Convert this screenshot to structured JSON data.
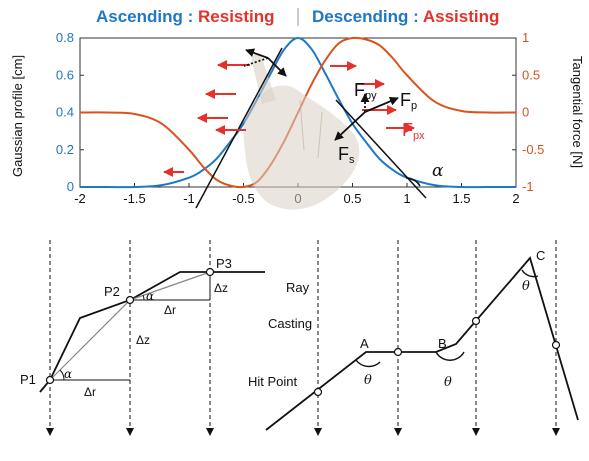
{
  "header": {
    "left_a": "Ascending",
    "left_sep": " : ",
    "left_b": "Resisting",
    "right_a": "Descending",
    "right_sep": " : ",
    "right_b": "Assisting"
  },
  "colors": {
    "gaussian": "#1f77c8",
    "tangential": "#d9531e",
    "force": "#e8302a",
    "text": "#111111"
  },
  "chart_data": {
    "type": "line",
    "xlabel": "",
    "xlim": [
      -2,
      2
    ],
    "ylim": [
      0,
      0.8
    ],
    "y2lim": [
      -1,
      1
    ],
    "xticks": [
      "-2",
      "-1.5",
      "-1",
      "-0.5",
      "0",
      "0.5",
      "1",
      "1.5",
      "2"
    ],
    "yticks": [
      "0",
      "0.2",
      "0.4",
      "0.6",
      "0.8"
    ],
    "y2ticks": [
      "-1",
      "-0.5",
      "0",
      "0.5",
      "1"
    ],
    "ylabel": "Gaussian profile [cm]",
    "y2label": "Tangential force [N]",
    "series": [
      {
        "axis": "left",
        "color": "#1f77c8",
        "x": [
          -2,
          -1.75,
          -1.5,
          -1.25,
          -1,
          -0.875,
          -0.75,
          -0.625,
          -0.5,
          -0.375,
          -0.25,
          -0.125,
          0,
          0.125,
          0.25,
          0.375,
          0.5,
          0.625,
          0.75,
          0.875,
          1,
          1.25,
          1.5,
          1.75,
          2
        ],
        "y": [
          0,
          0,
          0,
          0.01,
          0.05,
          0.09,
          0.15,
          0.24,
          0.34,
          0.47,
          0.61,
          0.74,
          0.8,
          0.74,
          0.61,
          0.47,
          0.34,
          0.24,
          0.15,
          0.09,
          0.05,
          0.01,
          0,
          0,
          0
        ]
      },
      {
        "axis": "right",
        "color": "#d9531e",
        "x": [
          -2,
          -1.75,
          -1.5,
          -1.25,
          -1,
          -0.875,
          -0.75,
          -0.625,
          -0.5,
          -0.375,
          -0.25,
          -0.125,
          0,
          0.125,
          0.25,
          0.375,
          0.5,
          0.625,
          0.75,
          0.875,
          1,
          1.25,
          1.5,
          1.75,
          2
        ],
        "y": [
          0,
          0,
          -0.02,
          -0.15,
          -0.5,
          -0.72,
          -0.9,
          -0.98,
          -1,
          -0.93,
          -0.7,
          -0.38,
          0,
          0.38,
          0.7,
          0.93,
          1,
          0.98,
          0.9,
          0.72,
          0.5,
          0.15,
          0.02,
          0,
          0
        ]
      }
    ]
  },
  "forces": {
    "fpy": "F",
    "fpy_sub": "py",
    "fp": "F",
    "fp_sub": "p",
    "fpx": "F",
    "fpx_sub": "px",
    "fs": "F",
    "fs_sub": "s",
    "alpha": "α"
  },
  "left_diagram": {
    "p1": "P1",
    "p2": "P2",
    "p3": "P3",
    "alpha": "α",
    "dr": "Δr",
    "dz": "Δz"
  },
  "right_diagram": {
    "ray": "Ray",
    "casting": "Casting",
    "hit_point": "Hit Point",
    "a": "A",
    "b": "B",
    "c": "C",
    "theta": "θ"
  }
}
